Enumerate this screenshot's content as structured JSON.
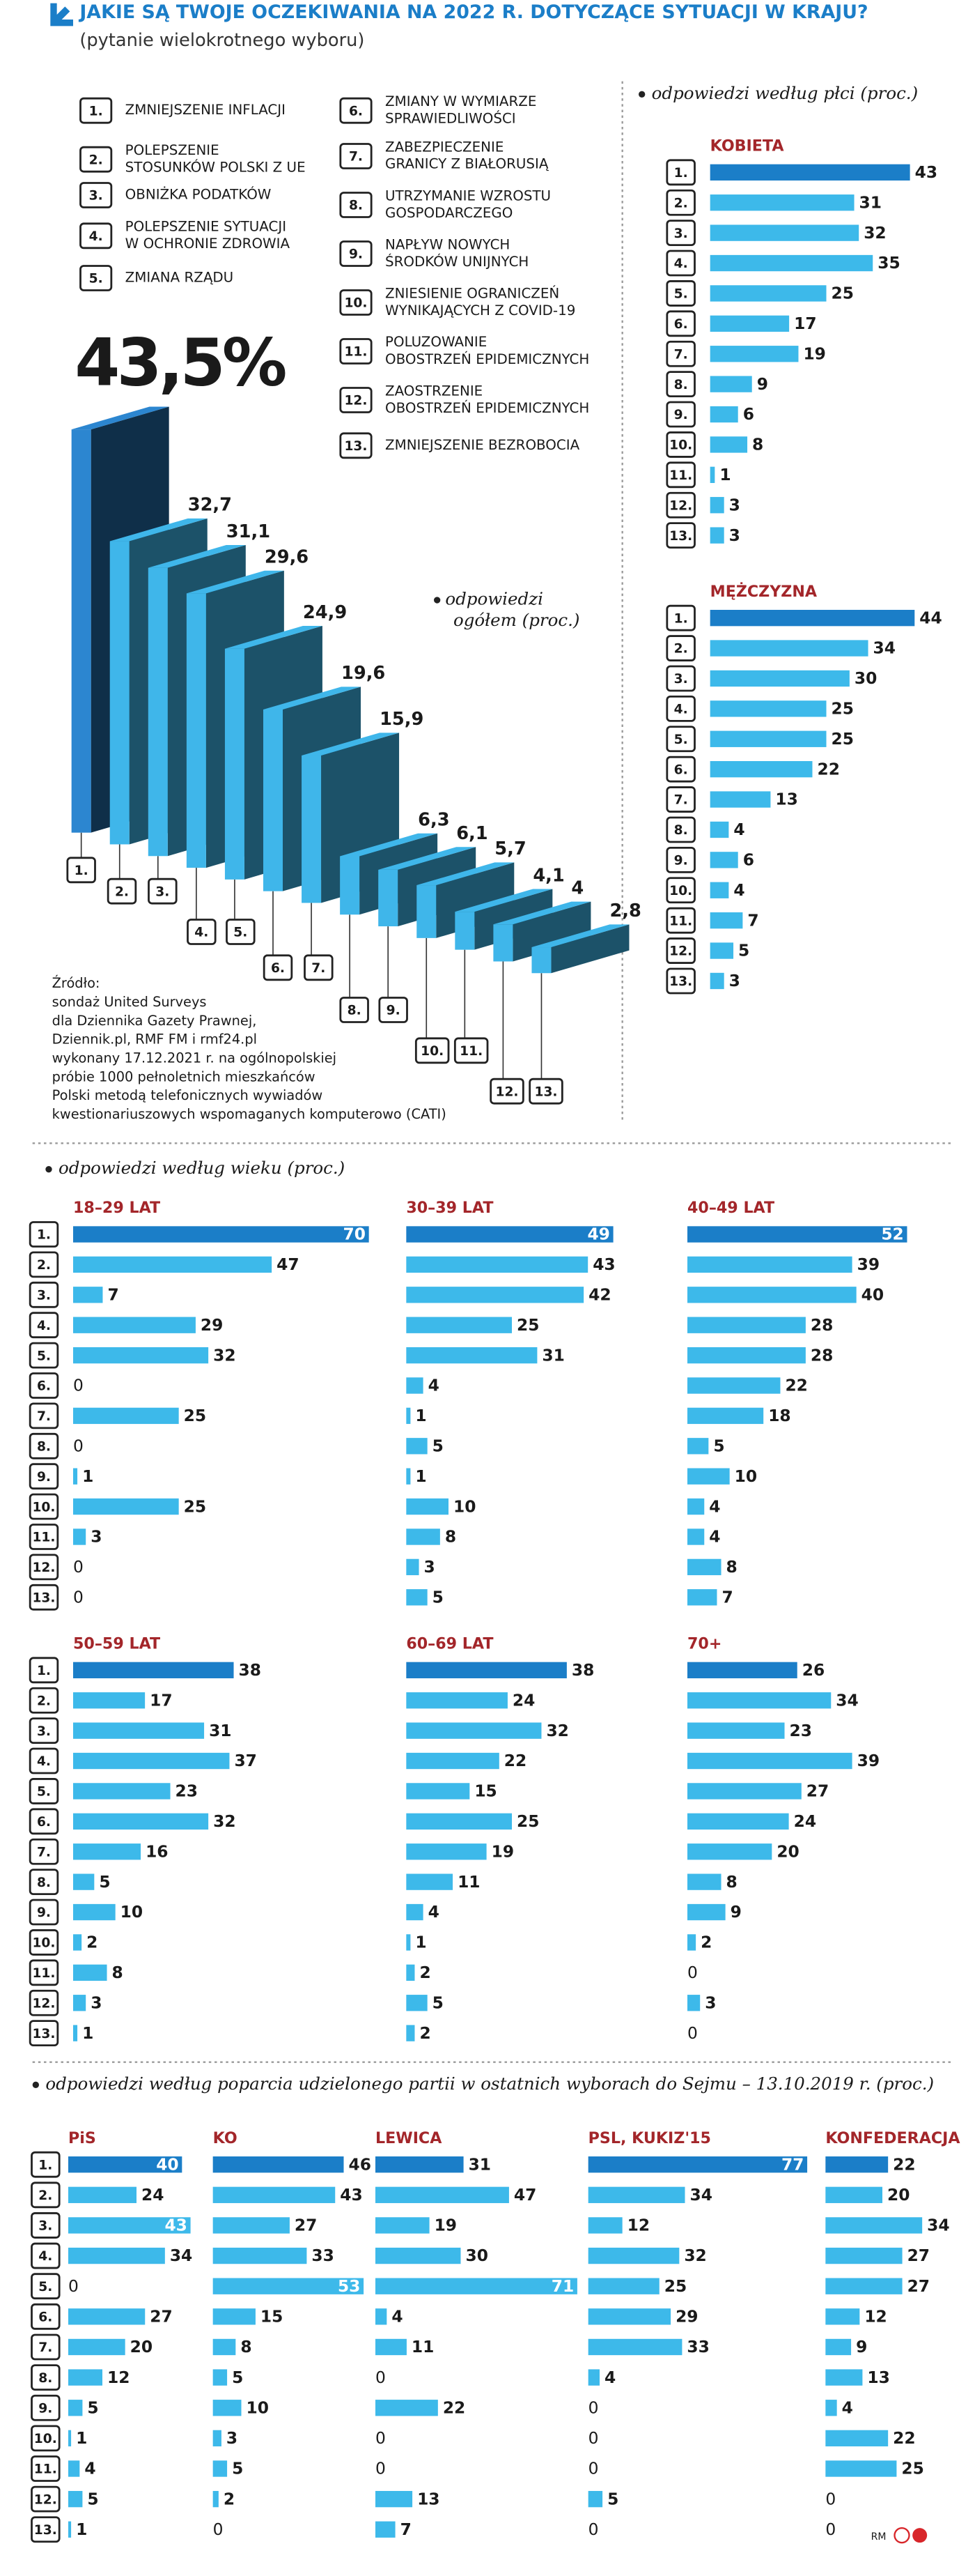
{
  "header": {
    "title": "JAKIE SĄ TWOJE OCZEKIWANIA NA 2022 R. DOTYCZĄCE SYTUACJI W KRAJU?",
    "subtitle": "(pytanie wielokrotnego wyboru)"
  },
  "legend": {
    "items": [
      {
        "label": [
          "ZMNIEJSZENIE INFLACJI"
        ]
      },
      {
        "label": [
          "POLEPSZENIE",
          "STOSUNKÓW POLSKI Z UE"
        ]
      },
      {
        "label": [
          "OBNIŻKA PODATKÓW"
        ]
      },
      {
        "label": [
          "POLEPSZENIE SYTUACJI",
          "W OCHRONIE ZDROWIA"
        ]
      },
      {
        "label": [
          "ZMIANA RZĄDU"
        ]
      },
      {
        "label": [
          "ZMIANY W WYMIARZE",
          "SPRAWIEDLIWOŚCI"
        ]
      },
      {
        "label": [
          "ZABEZPIECZENIE",
          "GRANICY Z BIAŁORUSIĄ"
        ]
      },
      {
        "label": [
          "UTRZYMANIE WZROSTU",
          "GOSPODARCZEGO"
        ]
      },
      {
        "label": [
          "NAPŁYW NOWYCH",
          "ŚRODKÓW UNIJNYCH"
        ]
      },
      {
        "label": [
          "ZNIESIENIE OGRANICZEŃ",
          "WYNIKAJĄCYCH Z COVID-19"
        ]
      },
      {
        "label": [
          "POLUZOWANIE",
          "OBOSTRZEŃ EPIDEMICZNYCH"
        ]
      },
      {
        "label": [
          "ZAOSTRZENIE",
          "OBOSTRZEŃ EPIDEMICZNYCH"
        ]
      },
      {
        "label": [
          "ZMNIEJSZENIE BEZROBOCIA"
        ]
      }
    ]
  },
  "chart_data": [
    {
      "type": "bar3d",
      "label": [
        "odpowiedzi",
        "ogółem (proc.)"
      ],
      "categories": [
        "1.",
        "2.",
        "3.",
        "4.",
        "5.",
        "6.",
        "7.",
        "8.",
        "9.",
        "10.",
        "11.",
        "12.",
        "13."
      ],
      "values": [
        43.5,
        32.7,
        31.1,
        29.6,
        24.9,
        19.6,
        15.9,
        6.3,
        6.1,
        5.7,
        4.1,
        4,
        2.8
      ],
      "value_labels": [
        "43,5%",
        "32,7",
        "31,1",
        "29,6",
        "24,9",
        "19,6",
        "15,9",
        "6,3",
        "6,1",
        "5,7",
        "4,1",
        "4",
        "2,8"
      ],
      "color": "#3fb6ea",
      "highlight_color": "#2c86d0"
    },
    {
      "type": "hbar",
      "title": "odpowiedzi według płci (proc.)",
      "categories": [
        "1.",
        "2.",
        "3.",
        "4.",
        "5.",
        "6.",
        "7.",
        "8.",
        "9.",
        "10.",
        "11.",
        "12.",
        "13."
      ],
      "color": "#3db9ea",
      "highlight_color": "#1b7ec8",
      "series": [
        {
          "name": "KOBIETA",
          "values": [
            43,
            31,
            32,
            35,
            25,
            17,
            19,
            9,
            6,
            8,
            1,
            3,
            3
          ]
        },
        {
          "name": "MĘŻCZYZNA",
          "values": [
            44,
            34,
            30,
            25,
            25,
            22,
            13,
            4,
            6,
            4,
            7,
            5,
            3
          ]
        }
      ]
    },
    {
      "type": "hbar",
      "title": "odpowiedzi według wieku (proc.)",
      "categories": [
        "1.",
        "2.",
        "3.",
        "4.",
        "5.",
        "6.",
        "7.",
        "8.",
        "9.",
        "10.",
        "11.",
        "12.",
        "13."
      ],
      "color": "#3db9ea",
      "highlight_color": "#1b7ec8",
      "series": [
        {
          "name": "18–29 LAT",
          "values": [
            70,
            47,
            7,
            29,
            32,
            0,
            25,
            0,
            1,
            25,
            3,
            0,
            0
          ]
        },
        {
          "name": "30–39 LAT",
          "values": [
            49,
            43,
            42,
            25,
            31,
            4,
            1,
            5,
            1,
            10,
            8,
            3,
            5
          ]
        },
        {
          "name": "40–49 LAT",
          "values": [
            52,
            39,
            40,
            28,
            28,
            22,
            18,
            5,
            10,
            4,
            4,
            8,
            7
          ]
        },
        {
          "name": "50–59 LAT",
          "values": [
            38,
            17,
            31,
            37,
            23,
            32,
            16,
            5,
            10,
            2,
            8,
            3,
            1
          ]
        },
        {
          "name": "60–69 LAT",
          "values": [
            38,
            24,
            32,
            22,
            15,
            25,
            19,
            11,
            4,
            1,
            2,
            5,
            2
          ]
        },
        {
          "name": "70+",
          "values": [
            26,
            34,
            23,
            39,
            27,
            24,
            20,
            8,
            9,
            2,
            0,
            3,
            0
          ]
        }
      ]
    },
    {
      "type": "hbar",
      "title": "odpowiedzi według poparcia udzielonego partii w ostatnich wyborach do Sejmu – 13.10.2019 r. (proc.)",
      "categories": [
        "1.",
        "2.",
        "3.",
        "4.",
        "5.",
        "6.",
        "7.",
        "8.",
        "9.",
        "10.",
        "11.",
        "12.",
        "13."
      ],
      "color": "#3db9ea",
      "highlight_color": "#1b7ec8",
      "series": [
        {
          "name": "PiS",
          "values": [
            40,
            24,
            43,
            34,
            0,
            27,
            20,
            12,
            5,
            1,
            4,
            5,
            1
          ]
        },
        {
          "name": "KO",
          "values": [
            46,
            43,
            27,
            33,
            53,
            15,
            8,
            5,
            10,
            3,
            5,
            2,
            0
          ]
        },
        {
          "name": "LEWICA",
          "values": [
            31,
            47,
            19,
            30,
            71,
            4,
            11,
            0,
            22,
            0,
            0,
            13,
            7
          ]
        },
        {
          "name": "PSL, KUKIZ'15",
          "values": [
            77,
            34,
            12,
            32,
            25,
            29,
            33,
            4,
            0,
            0,
            0,
            5,
            0
          ]
        },
        {
          "name": "KONFEDERACJA",
          "values": [
            22,
            20,
            34,
            27,
            27,
            12,
            9,
            13,
            4,
            22,
            25,
            0,
            0
          ]
        }
      ]
    }
  ],
  "source": [
    "Źródło:",
    "sondaż United Surveys",
    "dla Dziennika Gazety Prawnej,",
    "Dziennik.pl, RMF FM i rmf24.pl",
    "wykonany 17.12.2021 r. na ogólnopolskiej",
    "próbie 1000 pełnoletnich mieszkańców",
    "Polski metodą telefonicznych wywiadów",
    "kwestionariuszowych wspomaganych komputerowo (CATI)"
  ],
  "footer": "RM"
}
